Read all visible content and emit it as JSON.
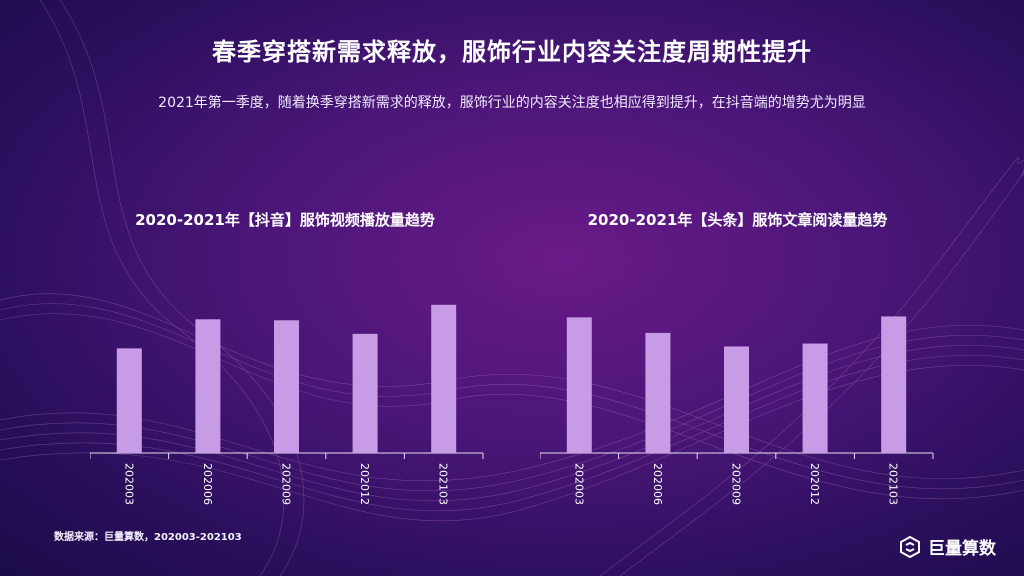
{
  "title": "春季穿搭新需求释放，服饰行业内容关注度周期性提升",
  "subtitle": "2021年第一季度，随着换季穿搭新需求的释放，服饰行业的内容关注度也相应得到提升，在抖音端的增势尤为明显",
  "source": "数据来源：巨量算数，202003-202103",
  "logo": {
    "text": "巨量算数",
    "icon": "juliang-logo-icon"
  },
  "colors": {
    "bar": "#c79be6",
    "axis": "#e6dcf5"
  },
  "chart_data": [
    {
      "type": "bar",
      "title": "2020-2021年【抖音】服饰视频播放量趋势",
      "categories": [
        "202003",
        "202006",
        "202009",
        "202012",
        "202103"
      ],
      "values": [
        108,
        138,
        137,
        123,
        153
      ],
      "ylim": [
        0,
        160
      ],
      "grid": false,
      "legend": "none"
    },
    {
      "type": "bar",
      "title": "2020-2021年【头条】服饰文章阅读量趋势",
      "categories": [
        "202003",
        "202006",
        "202009",
        "202012",
        "202103"
      ],
      "values": [
        140,
        124,
        110,
        113,
        141
      ],
      "ylim": [
        0,
        160
      ],
      "grid": false,
      "legend": "none"
    }
  ]
}
